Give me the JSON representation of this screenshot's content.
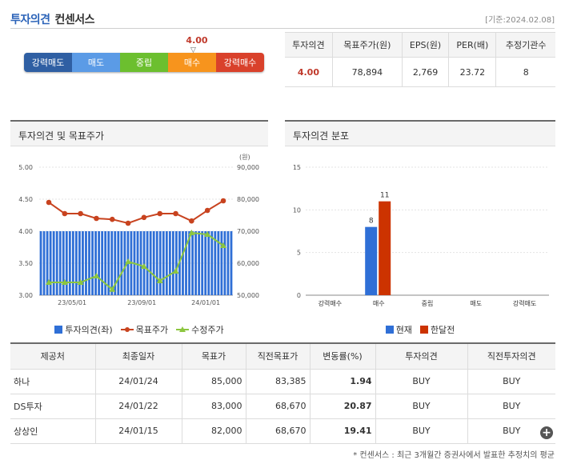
{
  "header": {
    "title": "투자의견",
    "subtitle": "컨센서스",
    "base_date": "[기준:2024.02.08]"
  },
  "scale": {
    "current_value": "4.00",
    "segments": [
      {
        "label": "강력매도",
        "color": "#2f5fa3"
      },
      {
        "label": "매도",
        "color": "#5b9be6"
      },
      {
        "label": "중립",
        "color": "#6cbf2f"
      },
      {
        "label": "매수",
        "color": "#f7941d"
      },
      {
        "label": "강력매수",
        "color": "#d9412b"
      }
    ],
    "marker_symbol": "▽"
  },
  "summary": {
    "headers": [
      "투자의견",
      "목표주가(원)",
      "EPS(원)",
      "PER(배)",
      "추정기관수"
    ],
    "values": [
      "4.00",
      "78,894",
      "2,769",
      "23.72",
      "8"
    ]
  },
  "panel_opinion": {
    "title": "투자의견 및 목표주가",
    "unit": "(원)"
  },
  "panel_dist": {
    "title": "투자의견 분포"
  },
  "chart_data": [
    {
      "type": "bar",
      "title": "투자의견 및 목표주가",
      "xticks": [
        "23/05/01",
        "23/09/01",
        "24/01/01"
      ],
      "y_left": {
        "range": [
          3.0,
          5.0
        ],
        "ticks": [
          "5.00",
          "4.50",
          "4.00",
          "3.50",
          "3.00"
        ]
      },
      "y_right": {
        "range": [
          50000,
          90000
        ],
        "ticks": [
          "90,000",
          "80,000",
          "70,000",
          "60,000",
          "50,000"
        ],
        "unit": "(원)"
      },
      "series": [
        {
          "name": "투자의견(좌)",
          "kind": "bar",
          "axis": "left",
          "color": "#2f6fd6",
          "values": [
            4.0,
            4.0,
            4.0,
            4.0,
            4.0,
            4.0,
            4.0,
            4.0,
            4.0,
            4.0,
            4.0,
            4.0,
            4.0,
            4.0,
            4.0,
            4.0,
            4.0,
            4.0,
            4.0,
            4.0,
            4.0,
            4.0,
            4.0,
            4.0,
            4.0,
            4.0,
            4.0,
            4.0,
            4.0,
            4.0,
            4.0,
            4.0,
            4.0,
            4.0,
            4.0,
            4.0,
            4.0,
            4.0,
            4.0,
            4.0,
            4.0,
            4.0,
            4.0,
            4.0,
            4.0,
            4.0,
            4.0,
            4.0,
            4.0,
            4.0,
            4.0,
            4.0,
            4.0,
            4.0,
            4.0,
            4.0,
            4.0,
            4.0,
            4.0,
            4.0
          ]
        },
        {
          "name": "목표주가",
          "kind": "line",
          "axis": "right",
          "color": "#c8431f",
          "values": [
            79000,
            75500,
            75500,
            74000,
            73700,
            72500,
            74300,
            75500,
            75500,
            73200,
            76500,
            79500
          ]
        },
        {
          "name": "수정주가",
          "kind": "line",
          "axis": "right",
          "color": "#8cc63f",
          "values": [
            54000,
            54000,
            54000,
            56000,
            51800,
            60500,
            59000,
            54500,
            57500,
            69500,
            69000,
            65500
          ]
        }
      ]
    },
    {
      "type": "bar",
      "title": "투자의견 분포",
      "categories": [
        "강력매수",
        "매수",
        "중립",
        "매도",
        "강력매도"
      ],
      "ylim": [
        0,
        15
      ],
      "yticks": [
        0,
        5,
        10,
        15
      ],
      "series": [
        {
          "name": "현재",
          "color": "#2f6fd6",
          "values": [
            0,
            8,
            0,
            0,
            0
          ]
        },
        {
          "name": "한달전",
          "color": "#cc3300",
          "values": [
            0,
            11,
            0,
            0,
            0
          ]
        }
      ]
    }
  ],
  "history": {
    "headers": [
      "제공처",
      "최종일자",
      "목표가",
      "직전목표가",
      "변동률(%)",
      "투자의견",
      "직전투자의견"
    ],
    "rows": [
      [
        "하나",
        "24/01/24",
        "85,000",
        "83,385",
        "1.94",
        "BUY",
        "BUY"
      ],
      [
        "DS투자",
        "24/01/22",
        "83,000",
        "68,670",
        "20.87",
        "BUY",
        "BUY"
      ],
      [
        "상상인",
        "24/01/15",
        "82,000",
        "68,670",
        "19.41",
        "BUY",
        "BUY"
      ]
    ],
    "more_symbol": "+"
  },
  "footnote": "* 컨센서스 : 최근 3개월간 증권사에서 발표한 추정치의 평균"
}
